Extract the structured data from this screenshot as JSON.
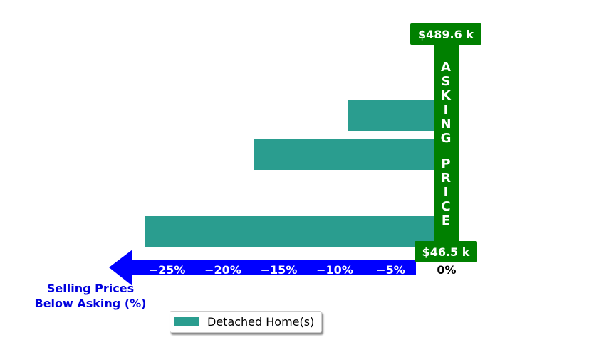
{
  "chart_data": {
    "type": "bar",
    "orientation": "horizontal",
    "series": [
      {
        "name": "Detached Home(s)",
        "values": [
          -27.0,
          null,
          -17.2,
          -8.8
        ]
      }
    ],
    "xlim": [
      -29.5,
      1.5
    ],
    "xticks": [
      {
        "value": -25,
        "label": "−25%"
      },
      {
        "value": -20,
        "label": "−20%"
      },
      {
        "value": -15,
        "label": "−15%"
      },
      {
        "value": -10,
        "label": "−10%"
      },
      {
        "value": -5,
        "label": "−5%"
      },
      {
        "value": 0,
        "label": "0%"
      }
    ],
    "xlabel": "Selling Prices\nBelow Asking (%)",
    "asking_price_label": "ASKING PRICE",
    "price_max_label": "$489.6 k",
    "price_min_label": "$46.5 k",
    "legend_position": "bottom-center",
    "grid": false
  },
  "colors": {
    "bar": "#2a9d8f",
    "asking_band": "#008000",
    "arrow": "#0000ff",
    "axis_title": "#0000dd"
  }
}
